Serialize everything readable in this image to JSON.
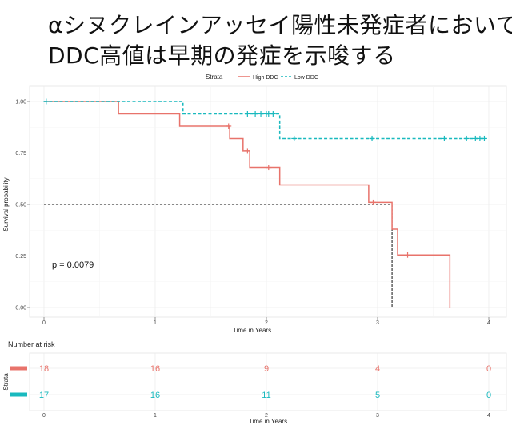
{
  "slide": {
    "title_line1": "αシヌクレインアッセイ陽性未発症者において",
    "title_line2": "DDC高値は早期の発症を示唆する"
  },
  "chart_data": [
    {
      "type": "line",
      "subtype": "kaplan-meier",
      "xlabel": "Time in Years",
      "ylabel": "Survival probability",
      "xlim": [
        0,
        4
      ],
      "ylim": [
        0,
        1
      ],
      "x_ticks": [
        "0",
        "1",
        "2",
        "3",
        "4"
      ],
      "y_ticks": [
        "0.00",
        "0.25",
        "0.50",
        "0.75",
        "1.00"
      ],
      "grid": true,
      "legend_title": "Strata",
      "legend_position": "top",
      "pvalue_label": "p = 0.0079",
      "median_line_y": 0.5,
      "median_drop_x": 3.13,
      "series": [
        {
          "name": "High DDC",
          "color": "#e8736b",
          "line_style": "solid",
          "steps": [
            [
              0,
              1.0
            ],
            [
              0.67,
              0.94
            ],
            [
              1.22,
              0.88
            ],
            [
              1.67,
              0.82
            ],
            [
              1.79,
              0.76
            ],
            [
              1.85,
              0.68
            ],
            [
              2.12,
              0.595
            ],
            [
              2.92,
              0.51
            ],
            [
              3.13,
              0.38
            ],
            [
              3.18,
              0.255
            ],
            [
              3.65,
              0.0
            ]
          ],
          "end_x": 3.65,
          "censor": [
            [
              1.66,
              0.88
            ],
            [
              1.83,
              0.76
            ],
            [
              2.02,
              0.68
            ],
            [
              2.96,
              0.51
            ],
            [
              3.27,
              0.255
            ]
          ]
        },
        {
          "name": "Low DDC",
          "color": "#19b9be",
          "line_style": "dashed",
          "steps": [
            [
              0,
              1.0
            ],
            [
              1.25,
              0.94
            ],
            [
              2.12,
              0.82
            ]
          ],
          "end_x": 3.97,
          "censor": [
            [
              0.02,
              1.0
            ],
            [
              1.83,
              0.94
            ],
            [
              1.9,
              0.94
            ],
            [
              1.95,
              0.94
            ],
            [
              2.0,
              0.94
            ],
            [
              2.02,
              0.94
            ],
            [
              2.06,
              0.94
            ],
            [
              2.25,
              0.82
            ],
            [
              2.95,
              0.82
            ],
            [
              3.6,
              0.82
            ],
            [
              3.8,
              0.82
            ],
            [
              3.88,
              0.82
            ],
            [
              3.92,
              0.82
            ],
            [
              3.96,
              0.82
            ]
          ]
        }
      ]
    },
    {
      "type": "table",
      "title": "Number at risk",
      "ylabel": "Strata",
      "xlabel": "Time in Years",
      "x_ticks": [
        "0",
        "1",
        "2",
        "3",
        "4"
      ],
      "columns": [
        0,
        1,
        2,
        3,
        4
      ],
      "rows": [
        {
          "name": "High DDC",
          "color": "#e8736b",
          "values": [
            "18",
            "16",
            "9",
            "4",
            "0"
          ]
        },
        {
          "name": "Low DDC",
          "color": "#19b9be",
          "values": [
            "17",
            "16",
            "11",
            "5",
            "0"
          ]
        }
      ]
    }
  ]
}
